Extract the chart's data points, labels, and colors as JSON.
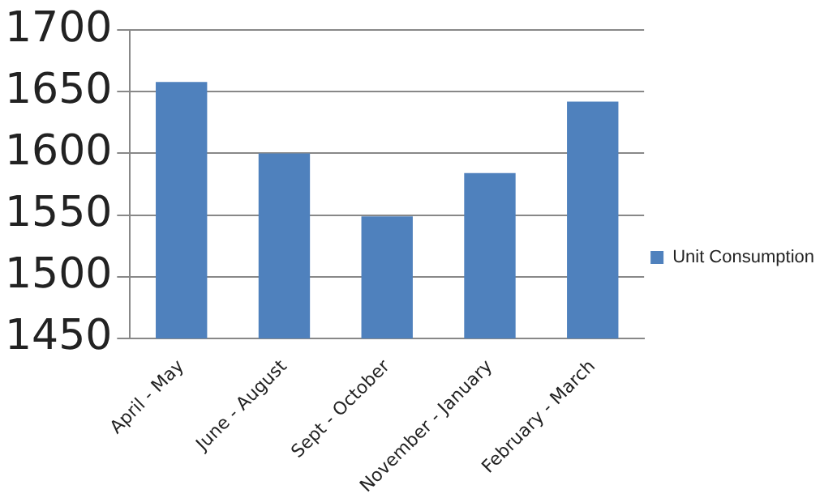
{
  "chart_data": {
    "type": "bar",
    "categories": [
      "April - May",
      "June - August",
      "Sept - October",
      "November - January",
      "February - March"
    ],
    "series": [
      {
        "name": "Unit Consumption",
        "color": "#4f81bd",
        "values": [
          1658,
          1600,
          1549,
          1584,
          1642
        ]
      }
    ],
    "ylim": [
      1450,
      1700
    ],
    "yticks": [
      1450,
      1500,
      1550,
      1600,
      1650,
      1700
    ],
    "grid": "y",
    "legend": "right"
  }
}
